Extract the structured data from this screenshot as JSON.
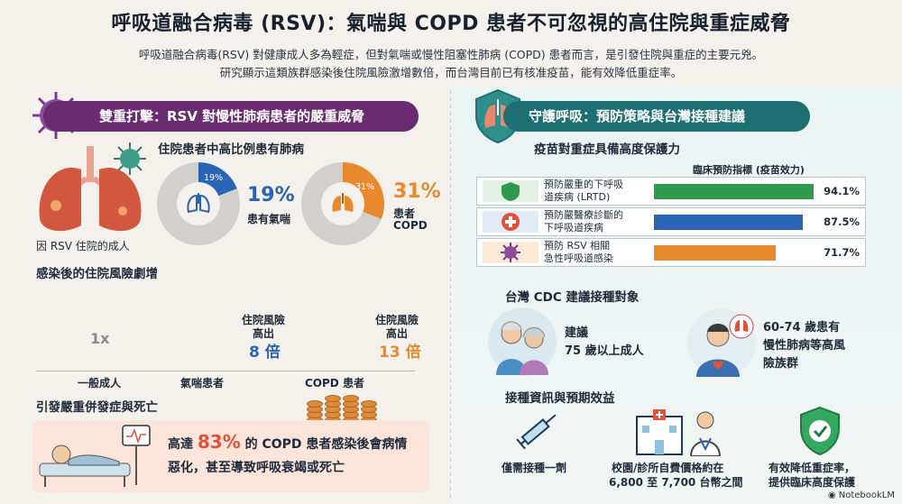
{
  "title": "呼吸道融合病毒 (RSV)：氣喘與 COPD 患者不可忽視的高住院與重症威脅",
  "subtitle_line1": "呼吸道融合病毒(RSV) 對健康成人多為輕症，但對氣喘或慢性阻塞性肺病 (COPD) 患者而言，是引發住院與重症的主要元兇。",
  "subtitle_line2": "研究顯示這類族群感染後住院風險激增數倍，而台灣目前已有核准疫苗，能有效降低重症率。",
  "left": {
    "banner": "雙重打擊：RSV 對慢性肺病患者的嚴重威脅",
    "hosp_heading": "住院患者中高比例患有肺病",
    "lung_caption": "因 RSV 住院的成人",
    "asthma": {
      "pct_small": "19%",
      "pct_big": "19%",
      "label": "患有氣喘",
      "value": 19
    },
    "copd": {
      "pct_small": "31%",
      "pct_big": "31%",
      "label_line1": "患者",
      "label_line2": "COPD",
      "value": 31
    },
    "risk_heading": "感染後的住院風險劇增",
    "general": {
      "multiplier": "1x",
      "label": "一般成人"
    },
    "asthma_risk": {
      "label_line1": "住院風險",
      "label_line2": "高出",
      "multiplier": "8 倍",
      "label": "氣喘患者"
    },
    "copd_risk": {
      "label_line1": "住院風險",
      "label_line2": "高出",
      "multiplier": "13 倍",
      "label": "COPD 患者"
    },
    "severe_heading": "引發嚴重併發症與死亡",
    "severe_pre": "高達",
    "severe_pct": "83%",
    "severe_post": "的 COPD 患者感染後會病情",
    "severe_line2": "惡化，甚至導致呼吸衰竭或死亡"
  },
  "right": {
    "banner": "守護呼吸：預防策略與台灣接種建議",
    "vaccine_heading": "疫苗對重症具備高度保護力",
    "table_header": "臨床預防指標 (疫苗效力)",
    "rows": [
      {
        "line1": "預防嚴重的下呼吸",
        "line2": "道疾病 (LRTD)",
        "value_text": "94.1%",
        "value": 94.1,
        "color": "#2e9a4c",
        "icon": "shield-lungs-icon"
      },
      {
        "line1": "預防嚴醫療診斷的",
        "line2": "下呼吸道疾病",
        "value_text": "87.5%",
        "value": 87.5,
        "color": "#2a64b5",
        "icon": "medical-cross-icon"
      },
      {
        "line1": "預防 RSV 相關",
        "line2": "急性呼吸道感染",
        "value_text": "71.7%",
        "value": 71.7,
        "color": "#e8892e",
        "icon": "virus-icon"
      }
    ],
    "cdc_heading": "台灣 CDC 建議接種對象",
    "elder": {
      "line1": "建議",
      "line2": "75 歲以上成人"
    },
    "risk_group": {
      "line1": "60-74 歲患有",
      "line2": "慢性肺病等高風",
      "line3": "險族群"
    },
    "info_heading": "接種資訊與預期效益",
    "items": [
      {
        "line1": "僅需接種一劑",
        "line2": ""
      },
      {
        "line1": "校園/診所自費價格約在",
        "line2": "6,800 至 7,700 台幣之間"
      },
      {
        "line1": "有效降低重症率，",
        "line2": "提供臨床高度保護"
      }
    ]
  },
  "brand": "NotebookLM",
  "colors": {
    "purple": "#6a2b70",
    "teal": "#1e6f74",
    "blue": "#2a64b5",
    "orange": "#e8892e",
    "green": "#2e9a4c",
    "red": "#e0523a"
  }
}
